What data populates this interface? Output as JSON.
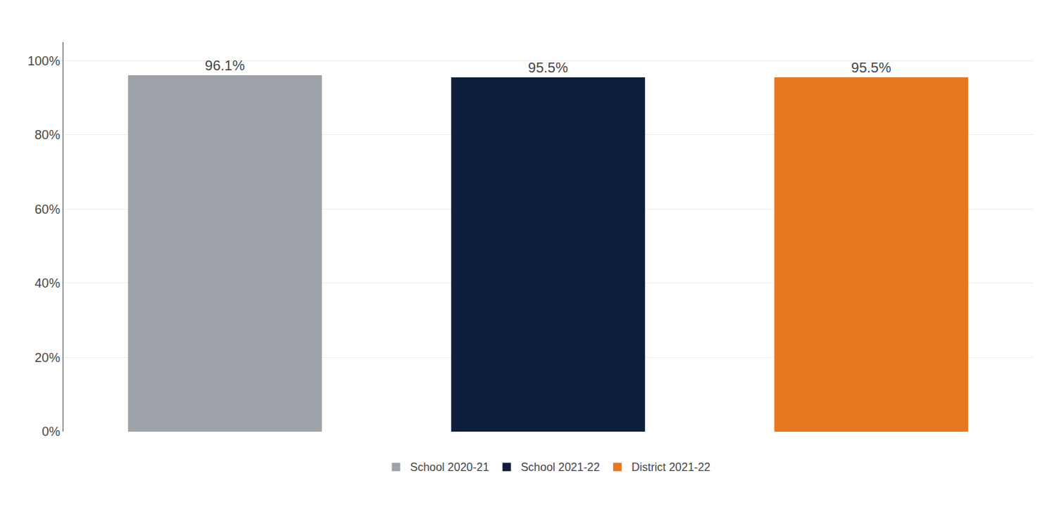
{
  "chart_data": {
    "type": "bar",
    "categories": [
      "School 2020-21",
      "School 2021-22",
      "District 2021-22"
    ],
    "values": [
      96.1,
      95.5,
      95.5
    ],
    "value_labels": [
      "96.1%",
      "95.5%",
      "95.5%"
    ],
    "colors": [
      "#9DA3A8",
      "#0D1F3C",
      "#E87722"
    ],
    "data_labels": true,
    "ylim": [
      0,
      105
    ],
    "yticks": [
      {
        "value": 0,
        "label": "0%"
      },
      {
        "value": 20,
        "label": "20%"
      },
      {
        "value": 40,
        "label": "40%"
      },
      {
        "value": 60,
        "label": "60%"
      },
      {
        "value": 80,
        "label": "80%"
      },
      {
        "value": 100,
        "label": "100%"
      }
    ],
    "grid": true,
    "legend": "bottom",
    "tick_labels": "y"
  }
}
